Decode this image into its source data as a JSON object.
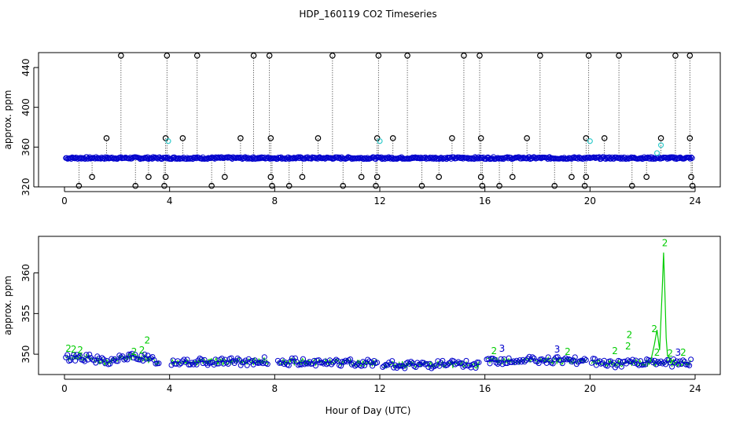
{
  "title": "HDP_160119  CO2 Timeseries",
  "xlabel": "Hour of Day (UTC)",
  "colors": {
    "hourly": "#000000",
    "minute": "#0000cc",
    "flagged": "#00cc00",
    "cyan": "#33cccc"
  },
  "chart_data": [
    {
      "type": "scatter",
      "ylabel": "approx. ppm",
      "xlim": [
        0,
        24
      ],
      "ylim": [
        320,
        455
      ],
      "xticks": [
        0,
        4,
        8,
        12,
        16,
        20,
        24
      ],
      "yticks": [
        320,
        360,
        400,
        440
      ],
      "baseline": 349,
      "spikes_high": [
        2.15,
        3.9,
        5.05,
        7.2,
        7.8,
        10.2,
        11.95,
        13.05,
        15.2,
        15.8,
        18.1,
        19.95,
        21.1,
        23.25,
        23.8
      ],
      "spikes_high_value": 452,
      "mid_points": [
        [
          1.6,
          369
        ],
        [
          3.85,
          369
        ],
        [
          4.5,
          369
        ],
        [
          6.7,
          369
        ],
        [
          7.85,
          369
        ],
        [
          9.65,
          369
        ],
        [
          11.9,
          369
        ],
        [
          12.5,
          369
        ],
        [
          14.75,
          369
        ],
        [
          15.85,
          369
        ],
        [
          17.6,
          369
        ],
        [
          19.85,
          369
        ],
        [
          20.55,
          369
        ],
        [
          22.7,
          369
        ],
        [
          23.8,
          369
        ]
      ],
      "low_points": [
        [
          0.55,
          321
        ],
        [
          1.05,
          330
        ],
        [
          2.7,
          321
        ],
        [
          3.2,
          330
        ],
        [
          3.8,
          321
        ],
        [
          3.85,
          330
        ],
        [
          5.6,
          321
        ],
        [
          6.1,
          330
        ],
        [
          7.85,
          330
        ],
        [
          7.9,
          321
        ],
        [
          8.55,
          321
        ],
        [
          9.05,
          330
        ],
        [
          10.6,
          321
        ],
        [
          11.3,
          330
        ],
        [
          11.85,
          321
        ],
        [
          11.9,
          330
        ],
        [
          13.6,
          321
        ],
        [
          14.25,
          330
        ],
        [
          15.85,
          330
        ],
        [
          15.9,
          321
        ],
        [
          16.55,
          321
        ],
        [
          17.05,
          330
        ],
        [
          18.65,
          321
        ],
        [
          19.3,
          330
        ],
        [
          19.8,
          321
        ],
        [
          19.85,
          330
        ],
        [
          21.6,
          321
        ],
        [
          22.15,
          330
        ],
        [
          23.85,
          330
        ],
        [
          23.9,
          321
        ]
      ],
      "cyan_points": [
        [
          3.95,
          366
        ],
        [
          12.0,
          366
        ],
        [
          20.0,
          366
        ],
        [
          22.7,
          362
        ],
        [
          22.55,
          354
        ]
      ]
    },
    {
      "type": "scatter",
      "ylabel": "approx. ppm",
      "xlim": [
        0,
        24
      ],
      "ylim": [
        347.5,
        364.5
      ],
      "xticks": [
        0,
        4,
        8,
        12,
        16,
        20,
        24
      ],
      "yticks": [
        350,
        355,
        360
      ],
      "gaps": [
        [
          3.6,
          4.05
        ],
        [
          7.75,
          8.1
        ],
        [
          11.9,
          12.1
        ],
        [
          15.8,
          16.05
        ],
        [
          19.9,
          20.05
        ]
      ],
      "labels": [
        {
          "x": 0.15,
          "y": 350.3,
          "text": "2"
        },
        {
          "x": 0.35,
          "y": 350.2,
          "text": "2"
        },
        {
          "x": 0.6,
          "y": 350.1,
          "text": "2"
        },
        {
          "x": 2.65,
          "y": 349.9,
          "text": "2"
        },
        {
          "x": 2.95,
          "y": 350.1,
          "text": "2"
        },
        {
          "x": 3.15,
          "y": 351.3,
          "text": "2"
        },
        {
          "x": 16.35,
          "y": 350.0,
          "text": "2"
        },
        {
          "x": 16.65,
          "y": 350.3,
          "text": "3"
        },
        {
          "x": 18.75,
          "y": 350.2,
          "text": "3"
        },
        {
          "x": 19.15,
          "y": 349.9,
          "text": "2"
        },
        {
          "x": 20.95,
          "y": 350.0,
          "text": "2"
        },
        {
          "x": 21.45,
          "y": 350.6,
          "text": "2"
        },
        {
          "x": 21.5,
          "y": 352.0,
          "text": "2"
        },
        {
          "x": 22.45,
          "y": 352.7,
          "text": "2"
        },
        {
          "x": 22.55,
          "y": 349.8,
          "text": "2"
        },
        {
          "x": 22.85,
          "y": 363.3,
          "text": "2"
        },
        {
          "x": 23.05,
          "y": 349.7,
          "text": "2"
        },
        {
          "x": 23.35,
          "y": 349.8,
          "text": "3"
        },
        {
          "x": 23.55,
          "y": 349.8,
          "text": "2"
        }
      ],
      "spike": {
        "x": [
          22.3,
          22.45,
          22.55,
          22.65,
          22.75,
          22.8,
          22.85,
          22.9,
          22.95,
          23.05,
          23.15
        ],
        "y": [
          349.0,
          351.2,
          353.0,
          350.5,
          358.0,
          362.5,
          357.5,
          352.0,
          349.8,
          349.4,
          349.1
        ]
      }
    }
  ]
}
